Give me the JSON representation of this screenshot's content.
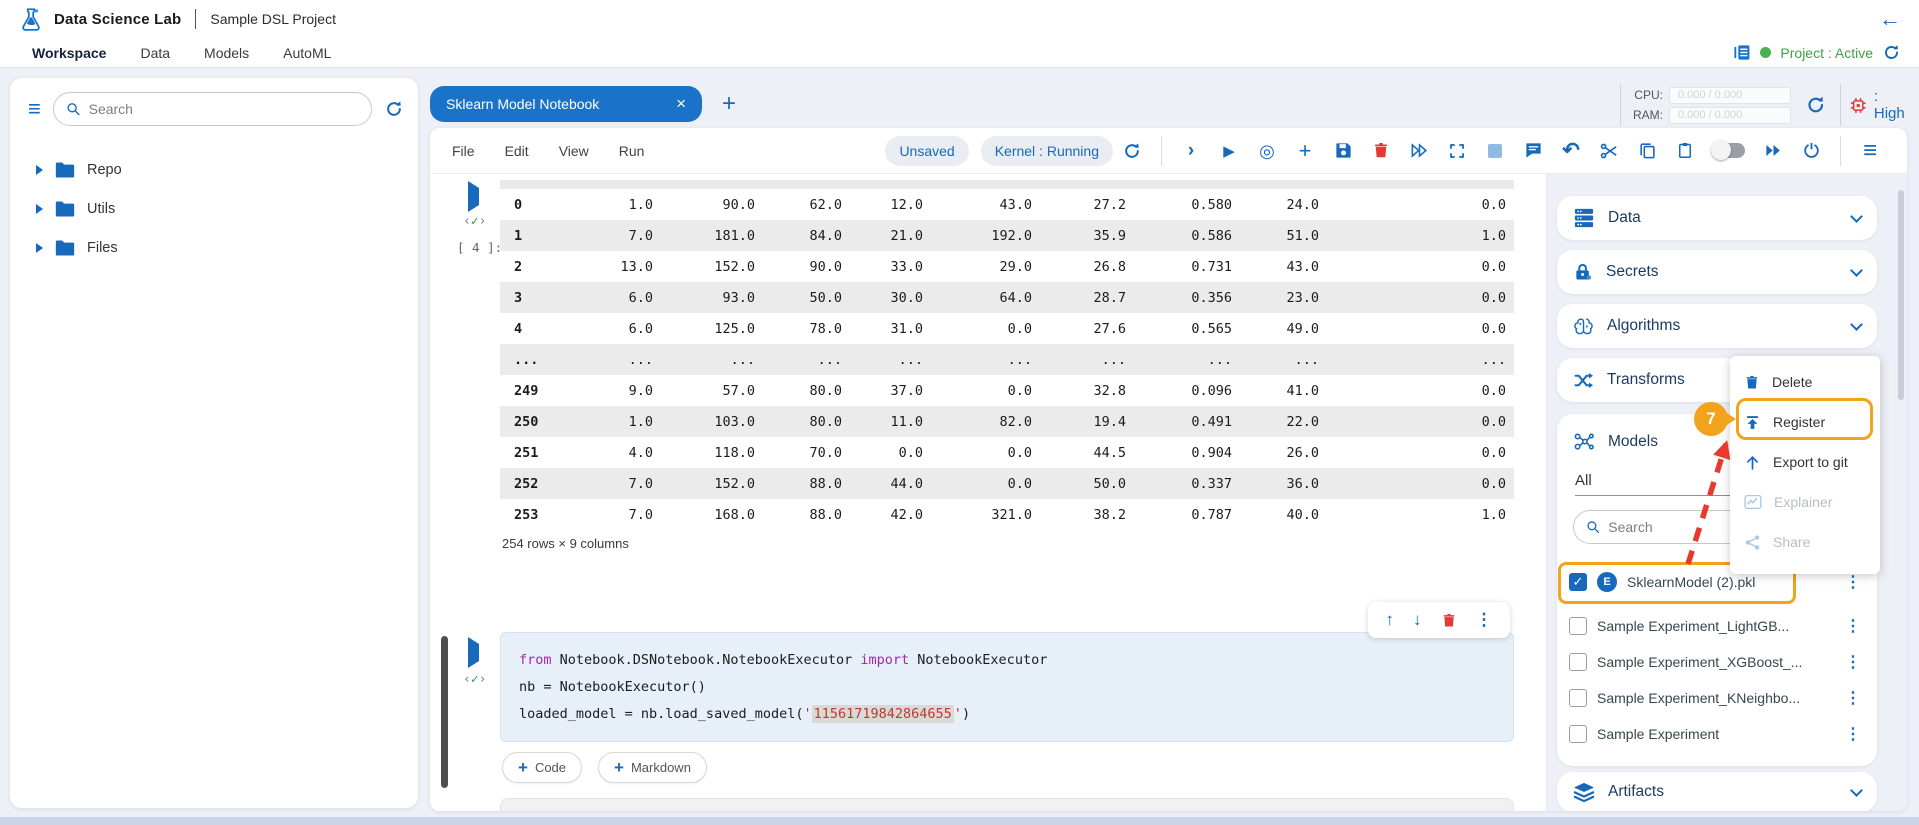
{
  "header": {
    "app_title": "Data Science Lab",
    "project_title": "Sample DSL Project"
  },
  "nav": {
    "items": [
      "Workspace",
      "Data",
      "Models",
      "AutoML"
    ],
    "project_status": "Project : Active"
  },
  "resources": {
    "cpu_label": "CPU:",
    "cpu_value": "0.000 / 0.000",
    "ram_label": "RAM:",
    "ram_value": "0.000 / 0.000",
    "priority_label": ": High"
  },
  "left_sidebar": {
    "search_placeholder": "Search",
    "tree": [
      "Repo",
      "Utils",
      "Files"
    ]
  },
  "notebook": {
    "tab_title": "Sklearn Model Notebook",
    "menu": [
      "File",
      "Edit",
      "View",
      "Run"
    ],
    "status": {
      "unsaved": "Unsaved",
      "kernel": "Kernel : Running"
    },
    "execution_count": "[ 4 ]:",
    "table": {
      "rows": [
        [
          "0",
          "1.0",
          "90.0",
          "62.0",
          "12.0",
          "43.0",
          "27.2",
          "0.580",
          "24.0",
          "0.0"
        ],
        [
          "1",
          "7.0",
          "181.0",
          "84.0",
          "21.0",
          "192.0",
          "35.9",
          "0.586",
          "51.0",
          "1.0"
        ],
        [
          "2",
          "13.0",
          "152.0",
          "90.0",
          "33.0",
          "29.0",
          "26.8",
          "0.731",
          "43.0",
          "0.0"
        ],
        [
          "3",
          "6.0",
          "93.0",
          "50.0",
          "30.0",
          "64.0",
          "28.7",
          "0.356",
          "23.0",
          "0.0"
        ],
        [
          "4",
          "6.0",
          "125.0",
          "78.0",
          "31.0",
          "0.0",
          "27.6",
          "0.565",
          "49.0",
          "0.0"
        ],
        [
          "...",
          "...",
          "...",
          "...",
          "...",
          "...",
          "...",
          "...",
          "...",
          "..."
        ],
        [
          "249",
          "9.0",
          "57.0",
          "80.0",
          "37.0",
          "0.0",
          "32.8",
          "0.096",
          "41.0",
          "0.0"
        ],
        [
          "250",
          "1.0",
          "103.0",
          "80.0",
          "11.0",
          "82.0",
          "19.4",
          "0.491",
          "22.0",
          "0.0"
        ],
        [
          "251",
          "4.0",
          "118.0",
          "70.0",
          "0.0",
          "0.0",
          "44.5",
          "0.904",
          "26.0",
          "0.0"
        ],
        [
          "252",
          "7.0",
          "152.0",
          "88.0",
          "44.0",
          "0.0",
          "50.0",
          "0.337",
          "36.0",
          "0.0"
        ],
        [
          "253",
          "7.0",
          "168.0",
          "88.0",
          "42.0",
          "321.0",
          "38.2",
          "0.787",
          "40.0",
          "1.0"
        ]
      ],
      "summary": "254 rows × 9 columns"
    },
    "code_cell": {
      "lines": [
        [
          {
            "t": "from ",
            "c": "kw"
          },
          {
            "t": "Notebook.DSNotebook.NotebookExecutor ",
            "c": "plain"
          },
          {
            "t": "import ",
            "c": "kw"
          },
          {
            "t": "NotebookExecutor",
            "c": "plain"
          }
        ],
        [
          {
            "t": "nb = NotebookExecutor()",
            "c": "plain"
          }
        ],
        [
          {
            "t": "loaded_model = nb.load_saved_model(",
            "c": "plain"
          },
          {
            "t": "'",
            "c": "str"
          },
          {
            "t": "11561719842864655",
            "c": "hl"
          },
          {
            "t": "'",
            "c": "str"
          },
          {
            "t": ")",
            "c": "plain"
          }
        ]
      ]
    },
    "add_code_label": "Code",
    "add_markdown_label": "Markdown"
  },
  "right_sidebar": {
    "sections": {
      "data": "Data",
      "secrets": "Secrets",
      "algorithms": "Algorithms",
      "transforms": "Transforms",
      "models": "Models",
      "artifacts": "Artifacts"
    },
    "models_panel": {
      "filter_value": "All",
      "search_placeholder": "Search",
      "items": [
        {
          "label": "SklearnModel (2).pkl",
          "avatar": "E",
          "checked": true
        },
        {
          "label": "Sample Experiment_LightGB...",
          "checked": false
        },
        {
          "label": "Sample Experiment_XGBoost_...",
          "checked": false
        },
        {
          "label": "Sample Experiment_KNeighbo...",
          "checked": false
        },
        {
          "label": "Sample Experiment",
          "checked": false
        }
      ]
    }
  },
  "context_menu": {
    "delete": "Delete",
    "register": "Register",
    "export_git": "Export to git",
    "explainer": "Explainer",
    "share": "Share"
  },
  "annotation": {
    "step_badge": "7"
  },
  "colors": {
    "accent": "#1669bb",
    "tab": "#1a73c8",
    "green": "#43a047",
    "orange": "#f0a31b",
    "red": "#e53935"
  }
}
